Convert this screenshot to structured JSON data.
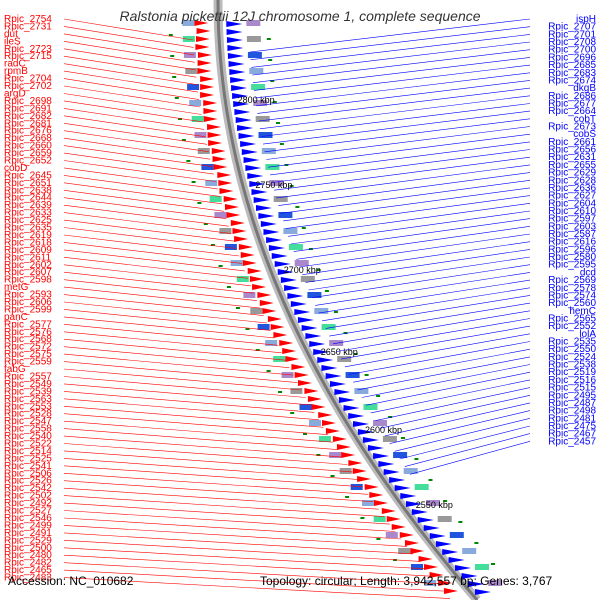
{
  "title": "Ralstonia pickettii 12J chromosome 1, complete sequence",
  "footer": {
    "accession": "Accession: NC_010682",
    "topology": "Topology: circular; Length: 3,942,557 bp; Genes: 3,767"
  },
  "colors": {
    "left_strand": "#ff0000",
    "right_strand": "#0000ff",
    "backbone": "#999999",
    "ticks": "#008800"
  },
  "scale_labels": [
    "2800 kbp",
    "2750 kbp",
    "2700 kbp",
    "2650 kbp",
    "2600 kbp",
    "2550 kbp"
  ],
  "left_labels": [
    "Rpic_2754",
    "Rpic_2731",
    "dut",
    "ileS",
    "Rpic_2723",
    "Rpic_2715",
    "radC",
    "rpmB",
    "Rpic_2704",
    "Rpic_2702",
    "argD",
    "Rpic_2698",
    "Rpic_2691",
    "Rpic_2682",
    "Rpic_2681",
    "Rpic_2676",
    "Rpic_2668",
    "Rpic_2660",
    "Rpic_2659",
    "Rpic_2652",
    "cobD",
    "Rpic_2645",
    "Rpic_2651",
    "Rpic_2638",
    "Rpic_2644",
    "Rpic_2639",
    "Rpic_2633",
    "Rpic_2625",
    "Rpic_2635",
    "Rpic_2619",
    "Rpic_2618",
    "Rpic_2609",
    "Rpic_2611",
    "Rpic_2602",
    "Rpic_2607",
    "Rpic_2598",
    "metG",
    "Rpic_2593",
    "Rpic_2606",
    "Rpic_2599",
    "panC",
    "Rpic_2577",
    "Rpic_2576",
    "Rpic_2568",
    "Rpic_2572",
    "Rpic_2575",
    "Rpic_2559",
    "fabG",
    "Rpic_2557",
    "Rpic_2549",
    "Rpic_2539",
    "Rpic_2563",
    "Rpic_2553",
    "Rpic_2528",
    "Rpic_2547",
    "Rpic_2558",
    "Rpic_2540",
    "Rpic_2522",
    "Rpic_2514",
    "Rpic_2525",
    "Rpic_2541",
    "Rpic_2506",
    "Rpic_2526",
    "Rpic_2542",
    "Rpic_2502",
    "Rpic_2492",
    "Rpic_2527",
    "Rpic_2546",
    "Rpic_2499",
    "Rpic_2491",
    "Rpic_2529",
    "Rpic_2500",
    "Rpic_2480",
    "Rpic_2482",
    "Rpic_2465",
    "Rpic_2483"
  ],
  "right_labels": [
    "ispH",
    "Rpic_2707",
    "Rpic_2701",
    "Rpic_2708",
    "Rpic_2700",
    "Rpic_2696",
    "Rpic_2685",
    "Rpic_2683",
    "Rpic_2674",
    "dkgB",
    "Rpic_2686",
    "Rpic_2677",
    "Rpic_2664",
    "cobT",
    "Rpic_2673",
    "cobS",
    "Rpic_2661",
    "Rpic_2656",
    "Rpic_2631",
    "Rpic_2655",
    "Rpic_2629",
    "Rpic_2628",
    "Rpic_2636",
    "Rpic_2627",
    "Rpic_2604",
    "Rpic_2610",
    "Rpic_2597",
    "Rpic_2603",
    "Rpic_2587",
    "Rpic_2616",
    "Rpic_2596",
    "Rpic_2580",
    "Rpic_2595",
    "dcd",
    "Rpic_2569",
    "Rpic_2578",
    "Rpic_2574",
    "Rpic_2560",
    "hemC",
    "Rpic_2565",
    "Rpic_2552",
    "lolA",
    "Rpic_2535",
    "Rpic_2550",
    "Rpic_2524",
    "Rpic_2538",
    "Rpic_2519",
    "Rpic_2516",
    "Rpic_2515",
    "Rpic_2495",
    "Rpic_2487",
    "Rpic_2498",
    "Rpic_2481",
    "Rpic_2475",
    "Rpic_2467",
    "Rpic_2457"
  ]
}
